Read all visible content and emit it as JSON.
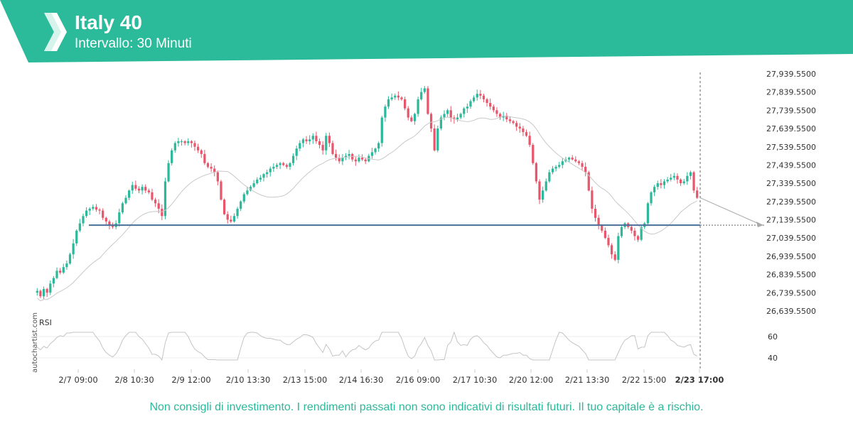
{
  "header": {
    "title": "Italy 40",
    "subtitle": "Intervallo: 30 Minuti",
    "brand_color": "#2bbb9b"
  },
  "watermark": "autochartist.com",
  "disclaimer": "Non consigli di investimento. I rendimenti passati non sono indicativi di risultati futuri. Il tuo capitale è a rischio.",
  "chart_data": {
    "type": "candlestick",
    "instrument": "Italy 40",
    "interval": "30 Minuti",
    "y_ticks": [
      "27,939.5500",
      "27,839.5500",
      "27,739.5500",
      "27,639.5500",
      "27,539.5500",
      "27,439.5500",
      "27,339.5500",
      "27,239.5500",
      "27,139.5500",
      "27,039.5500",
      "26,939.5500",
      "26,839.5500",
      "26,739.5500",
      "26,639.5500"
    ],
    "ylim": [
      26639.55,
      27939.55
    ],
    "x_labels": [
      "2/7 09:00",
      "2/8 10:30",
      "2/9 12:00",
      "2/10 13:30",
      "2/13 15:00",
      "2/14 16:30",
      "2/16 09:00",
      "2/17 10:30",
      "2/20 12:00",
      "2/21 13:30",
      "2/22 15:00",
      "2/23 17:00"
    ],
    "highlight_x_label": "2/23 17:00",
    "support_level": 27110,
    "projection": {
      "from": 27260,
      "to": 27110
    },
    "colors": {
      "up": "#2bb89b",
      "down": "#e8566b",
      "level": "#4a6f9a",
      "ma": "#c8c8c8"
    },
    "close_series": [
      26750,
      26720,
      26760,
      26740,
      26790,
      26820,
      26860,
      26850,
      26880,
      26900,
      26950,
      27010,
      27080,
      27120,
      27160,
      27190,
      27200,
      27210,
      27195,
      27190,
      27150,
      27130,
      27110,
      27100,
      27120,
      27180,
      27230,
      27260,
      27300,
      27330,
      27310,
      27300,
      27320,
      27300,
      27290,
      27250,
      27230,
      27200,
      27160,
      27350,
      27450,
      27520,
      27560,
      27570,
      27570,
      27560,
      27570,
      27560,
      27540,
      27520,
      27500,
      27450,
      27430,
      27420,
      27400,
      27350,
      27250,
      27170,
      27140,
      27130,
      27160,
      27200,
      27240,
      27280,
      27300,
      27320,
      27340,
      27360,
      27370,
      27390,
      27400,
      27420,
      27430,
      27440,
      27450,
      27440,
      27430,
      27450,
      27490,
      27530,
      27560,
      27580,
      27570,
      27580,
      27600,
      27570,
      27550,
      27520,
      27600,
      27560,
      27500,
      27480,
      27460,
      27480,
      27490,
      27500,
      27470,
      27460,
      27480,
      27470,
      27460,
      27490,
      27510,
      27530,
      27560,
      27700,
      27760,
      27800,
      27810,
      27820,
      27810,
      27800,
      27750,
      27700,
      27680,
      27720,
      27800,
      27840,
      27860,
      27720,
      27640,
      27520,
      27640,
      27700,
      27720,
      27740,
      27700,
      27690,
      27700,
      27720,
      27750,
      27760,
      27790,
      27810,
      27830,
      27820,
      27800,
      27780,
      27760,
      27740,
      27720,
      27700,
      27710,
      27690,
      27680,
      27670,
      27650,
      27640,
      27620,
      27600,
      27550,
      27450,
      27350,
      27250,
      27300,
      27350,
      27400,
      27420,
      27430,
      27440,
      27460,
      27470,
      27480,
      27470,
      27460,
      27450,
      27430,
      27400,
      27300,
      27200,
      27150,
      27110,
      27080,
      27040,
      27000,
      26950,
      26920,
      27050,
      27100,
      27120,
      27100,
      27080,
      27050,
      27030,
      27100,
      27120,
      27230,
      27290,
      27320,
      27340,
      27330,
      27350,
      27360,
      27370,
      27380,
      27360,
      27340,
      27350,
      27380,
      27400,
      27300,
      27260
    ],
    "rsi": {
      "label": "RSI",
      "y_ticks": [
        "60",
        "40"
      ],
      "ylim": [
        30,
        70
      ]
    }
  }
}
